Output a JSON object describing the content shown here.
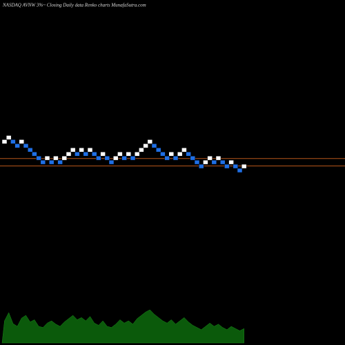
{
  "chart_data": {
    "type": "renko",
    "title": "NASDAQ AVNW 3%~   Closing Daily data  Renko  charts MunafaSutra.com",
    "values": [
      35.0,
      35.5,
      35.0,
      34.5,
      35.0,
      34.5,
      34.0,
      33.5,
      33.0,
      32.5,
      33.0,
      32.5,
      33.0,
      32.5,
      33.0,
      33.5,
      34.0,
      33.5,
      34.0,
      33.5,
      34.0,
      33.5,
      33.0,
      33.5,
      33.0,
      32.5,
      33.0,
      33.5,
      33.0,
      33.5,
      33.0,
      33.5,
      34.0,
      34.5,
      35.0,
      34.5,
      34.0,
      33.5,
      33.0,
      33.5,
      33.0,
      33.5,
      34.0,
      33.5,
      33.0,
      32.5,
      32.0,
      32.5,
      33.0,
      32.5,
      33.0,
      32.5,
      32.0,
      32.5,
      32.0,
      31.5,
      32.0
    ],
    "brick_size": 0.5,
    "up_color": "#ffffff",
    "down_color": "#1f6fe5",
    "ylim": [
      10,
      52
    ],
    "reference_lines": [
      32.7,
      31.8
    ],
    "reference_color": "#b8561a",
    "volume": [
      40,
      55,
      35,
      30,
      45,
      50,
      38,
      42,
      30,
      28,
      36,
      40,
      34,
      30,
      38,
      44,
      50,
      42,
      46,
      40,
      48,
      36,
      32,
      40,
      30,
      28,
      34,
      42,
      36,
      40,
      34,
      44,
      50,
      56,
      60,
      52,
      46,
      40,
      36,
      42,
      34,
      40,
      46,
      38,
      32,
      28,
      24,
      30,
      36,
      30,
      34,
      28,
      24,
      30,
      26,
      22,
      26
    ],
    "volume_color": "#0b5a0b",
    "vlim": [
      0,
      100
    ]
  }
}
